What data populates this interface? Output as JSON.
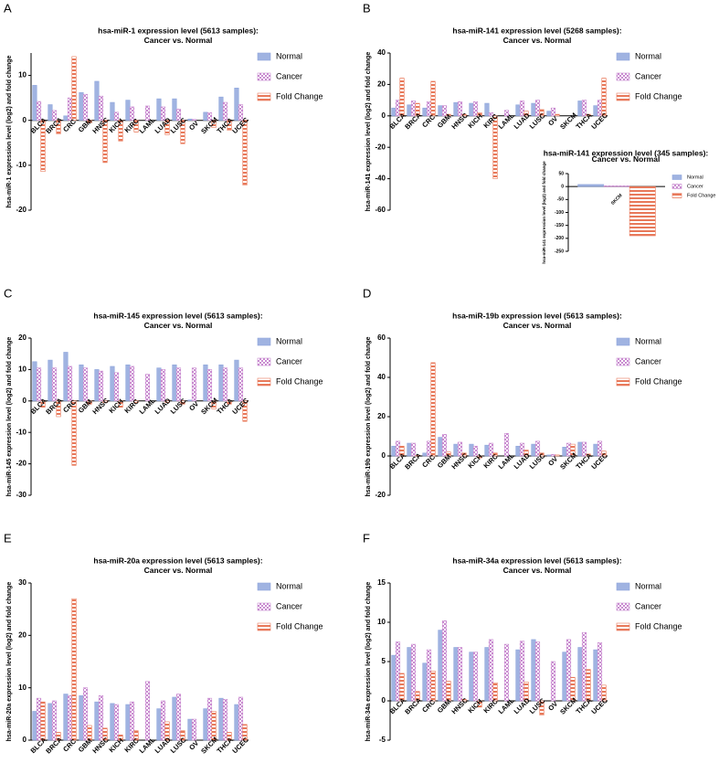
{
  "chart_data": [
    {
      "type": "bar",
      "label": "A",
      "title": "hsa-miR-1 expression level (5613 samples):",
      "subtitle": "Cancer vs. Normal",
      "ylabel": "hsa-miR-1 expression level (log2) and fold change",
      "categories": [
        "BLCA",
        "BRCA",
        "CRC",
        "GBM",
        "HNSC",
        "KICH",
        "KIRC",
        "LAML",
        "LUAD",
        "LUSC",
        "OV",
        "SKCM",
        "THCA",
        "UCEC"
      ],
      "series": [
        {
          "name": "Normal",
          "color": "#8fa6dc",
          "values": [
            7.8,
            3.5,
            1,
            6.2,
            8.7,
            4,
            4.5,
            0,
            4.8,
            4.8,
            0.3,
            1.8,
            5.2,
            7.2
          ]
        },
        {
          "name": "Cancer",
          "color": "#c98bd0",
          "values": [
            4.2,
            2.2,
            5,
            5.8,
            5.4,
            1.8,
            3,
            3.2,
            3,
            2.5,
            0.2,
            1.7,
            4,
            3.5
          ]
        },
        {
          "name": "Fold Change",
          "color": "#e8795a",
          "values": [
            -11.4,
            -3,
            14.2,
            -0.6,
            -9.4,
            -4.6,
            -2.6,
            0,
            -3.2,
            -5.2,
            0,
            -1.6,
            -2.2,
            -14.4
          ]
        }
      ],
      "ylim": [
        -20,
        15
      ],
      "yticks": [
        -20,
        -10,
        0,
        10
      ],
      "legend": "upper right"
    },
    {
      "type": "bar",
      "label": "B",
      "title": "hsa-miR-141 expression level (5268 samples):",
      "subtitle": "Cancer vs. Normal",
      "ylabel": "hsa-miR-141 expression level (log2) and fold change",
      "categories": [
        "BLCA",
        "BRCA",
        "CRC",
        "GBM",
        "HNSC",
        "KICH",
        "KIRC",
        "LAML",
        "LUAD",
        "LUSC",
        "OV",
        "SKCM",
        "THCA",
        "UCEC"
      ],
      "series": [
        {
          "name": "Normal",
          "color": "#8fa6dc",
          "values": [
            5,
            7,
            5,
            6.5,
            8.5,
            8,
            8,
            0,
            7,
            8,
            3,
            0,
            9.5,
            6.5
          ]
        },
        {
          "name": "Cancer",
          "color": "#c98bd0",
          "values": [
            10,
            9.5,
            9,
            6.5,
            9,
            9,
            2,
            3.5,
            9.5,
            10,
            5,
            0,
            10,
            10
          ]
        },
        {
          "name": "Fold Change",
          "color": "#e8795a",
          "values": [
            24,
            8,
            22,
            1,
            1,
            2,
            -40,
            0,
            3,
            4,
            1,
            0,
            1,
            24
          ]
        }
      ],
      "ylim": [
        -60,
        40
      ],
      "yticks": [
        -60,
        -40,
        -20,
        0,
        20,
        40
      ],
      "legend": "upper right"
    },
    {
      "type": "bar",
      "title": "hsa-miR-141 expression level (345 samples):",
      "subtitle": "Cancer vs. Normal",
      "ylabel": "hsa-miR-141 expression level (log2) and fold change",
      "categories": [
        "SKCM"
      ],
      "series": [
        {
          "name": "Normal",
          "color": "#8fa6dc",
          "values": [
            8
          ]
        },
        {
          "name": "Cancer",
          "color": "#c98bd0",
          "values": [
            3
          ]
        },
        {
          "name": "Fold Change",
          "color": "#e8795a",
          "values": [
            -190
          ]
        }
      ],
      "ylim": [
        -250,
        50
      ],
      "yticks": [
        -250,
        -200,
        -150,
        -100,
        -50,
        0,
        50
      ],
      "legend": "upper right"
    },
    {
      "type": "bar",
      "label": "C",
      "title": "hsa-miR-145 expression level (5613 samples):",
      "subtitle": "Cancer vs. Normal",
      "ylabel": "hsa-miR-145 expression level (log2) and fold change",
      "categories": [
        "BLCA",
        "BRCA",
        "CRC",
        "GBM",
        "HNSC",
        "KICH",
        "KIRC",
        "LAML",
        "LUAD",
        "LUSC",
        "OV",
        "SKCM",
        "THCA",
        "UCEC"
      ],
      "series": [
        {
          "name": "Normal",
          "color": "#8fa6dc",
          "values": [
            12.5,
            13,
            15.5,
            11.5,
            10,
            11,
            11.5,
            0,
            10.5,
            11.5,
            0.3,
            11.5,
            11.5,
            13
          ]
        },
        {
          "name": "Cancer",
          "color": "#c98bd0",
          "values": [
            10.5,
            10.5,
            11,
            10.5,
            9.5,
            9,
            11,
            8.5,
            10,
            10.5,
            10.5,
            10,
            10.5,
            10.5
          ]
        },
        {
          "name": "Fold Change",
          "color": "#e8795a",
          "values": [
            -2,
            -5,
            -20.5,
            -1,
            -0.5,
            -2,
            -0.5,
            0,
            -0.5,
            -1,
            0,
            -2.5,
            -1,
            -6.5
          ]
        }
      ],
      "ylim": [
        -30,
        20
      ],
      "yticks": [
        -30,
        -20,
        -10,
        0,
        10,
        20
      ],
      "legend": "upper right"
    },
    {
      "type": "bar",
      "label": "D",
      "title": "hsa-miR-19b expression level (5613 samples):",
      "subtitle": "Cancer vs. Normal",
      "ylabel": "hsa-miR-19b expression level (log2) and fold change",
      "categories": [
        "BLCA",
        "BRCA",
        "CRC",
        "GBM",
        "HNSC",
        "KICH",
        "KIRC",
        "LAML",
        "LUAD",
        "LUSC",
        "OV",
        "SKCM",
        "THCA",
        "UCEC"
      ],
      "series": [
        {
          "name": "Normal",
          "color": "#8fa6dc",
          "values": [
            5,
            6.5,
            1.5,
            9.5,
            6,
            6,
            5.5,
            0,
            5,
            6,
            0.5,
            4.5,
            7,
            6
          ]
        },
        {
          "name": "Cancer",
          "color": "#c98bd0",
          "values": [
            7.5,
            6.5,
            7.5,
            11,
            7,
            5,
            6.5,
            11.5,
            6.5,
            7.5,
            0.8,
            6.5,
            7,
            7.5
          ]
        },
        {
          "name": "Fold Change",
          "color": "#e8795a",
          "values": [
            5,
            0.2,
            47.5,
            2,
            1.5,
            -1,
            1.5,
            0,
            3,
            1.5,
            0.5,
            6,
            1,
            2.5
          ]
        }
      ],
      "ylim": [
        -20,
        60
      ],
      "yticks": [
        -20,
        0,
        20,
        40,
        60
      ],
      "legend": "upper right"
    },
    {
      "type": "bar",
      "label": "E",
      "title": "hsa-miR-20a expression level (5613 samples):",
      "subtitle": "Cancer vs. Normal",
      "ylabel": "hsa-miR-20a expression level (log2) and fold change",
      "categories": [
        "BLCA",
        "BRCA",
        "CRC",
        "GBM",
        "HNSC",
        "KICH",
        "KIRC",
        "LAML",
        "LUAD",
        "LUSC",
        "OV",
        "SKCM",
        "THCA",
        "UCEC"
      ],
      "series": [
        {
          "name": "Normal",
          "color": "#8fa6dc",
          "values": [
            5.5,
            7,
            8.8,
            8.5,
            7.3,
            7,
            6.8,
            0,
            6,
            8.2,
            4,
            6,
            8,
            6.8
          ]
        },
        {
          "name": "Cancer",
          "color": "#c98bd0",
          "values": [
            8,
            7.5,
            8.5,
            10,
            8.5,
            6.8,
            7.3,
            11.2,
            7.5,
            8.8,
            4,
            8,
            7.8,
            8.2
          ]
        },
        {
          "name": "Fold Change",
          "color": "#e8795a",
          "values": [
            7.3,
            1.5,
            27,
            2.8,
            2.3,
            1,
            1.8,
            0,
            3.5,
            1.8,
            0,
            5.5,
            1.5,
            3
          ]
        }
      ],
      "ylim": [
        0,
        30
      ],
      "yticks": [
        0,
        10,
        20,
        30
      ],
      "legend": "upper right"
    },
    {
      "type": "bar",
      "label": "F",
      "title": "hsa-miR-34a expression level (5613 samples):",
      "subtitle": "Cancer vs. Normal",
      "ylabel": "hsa-miR-34a expression level (log2) and fold change",
      "categories": [
        "BLCA",
        "BRCA",
        "CRC",
        "GBM",
        "HNSC",
        "KICH",
        "KIRC",
        "LAML",
        "LUAD",
        "LUSC",
        "OV",
        "SKCM",
        "THCA",
        "UCEC"
      ],
      "series": [
        {
          "name": "Normal",
          "color": "#8fa6dc",
          "values": [
            5.8,
            6.8,
            4.8,
            9,
            6.8,
            6.2,
            6.8,
            0,
            6.5,
            7.8,
            0,
            6.2,
            6.8,
            6.5
          ]
        },
        {
          "name": "Cancer",
          "color": "#c98bd0",
          "values": [
            7.5,
            7.2,
            6.5,
            10.2,
            6.8,
            6.2,
            7.8,
            7.2,
            7.6,
            7.5,
            5,
            7.8,
            8.7,
            7.4
          ]
        },
        {
          "name": "Fold Change",
          "color": "#e8795a",
          "values": [
            3.5,
            1.2,
            3.8,
            2.5,
            0.2,
            -0.8,
            2.3,
            0,
            2.4,
            -1.8,
            0,
            3,
            4,
            2
          ]
        }
      ],
      "ylim": [
        -5,
        15
      ],
      "yticks": [
        -5,
        0,
        5,
        10,
        15
      ],
      "legend": "upper right"
    }
  ]
}
